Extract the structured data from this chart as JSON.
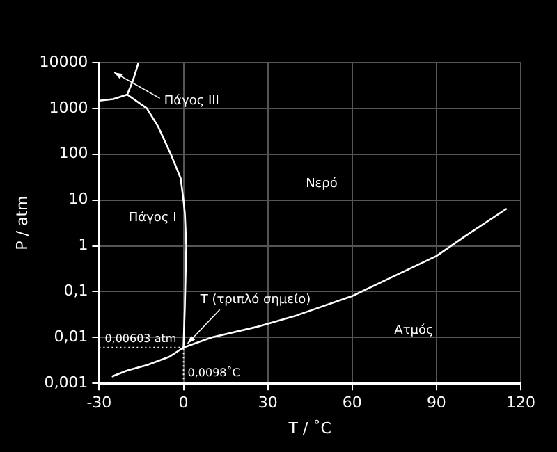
{
  "chart_data": {
    "type": "line",
    "xlabel": "T / ˚C",
    "ylabel": "P / atm",
    "log": "y",
    "grid": true,
    "marker": "none",
    "line_style": "solid",
    "legend": false,
    "xlim": [
      -30,
      120
    ],
    "xticks": [
      -30,
      0,
      30,
      60,
      90,
      120
    ],
    "ylim": [
      0.001,
      10000
    ],
    "yticks": [
      {
        "value": 0.001,
        "label": "0,001"
      },
      {
        "value": 0.01,
        "label": "0,01"
      },
      {
        "value": 0.1,
        "label": "0,1"
      },
      1,
      10,
      100,
      1000,
      10000
    ],
    "series": [
      {
        "color": "#ffffff",
        "x": [
          -25.5,
          -20,
          -13,
          -5,
          0.0098,
          10,
          26,
          40,
          60,
          75,
          90,
          100,
          115
        ],
        "values": [
          0.0014,
          0.0019,
          0.0025,
          0.0038,
          0.00603,
          0.01,
          0.017,
          0.03,
          0.08,
          0.22,
          0.6,
          1.6,
          6.5
        ]
      },
      {
        "color": "#ffffff",
        "x": [
          0.0098,
          0.5,
          1,
          0.5,
          0,
          -1,
          -4.5,
          -9,
          -13,
          -20
        ],
        "values": [
          0.00603,
          0.05,
          1,
          5,
          10,
          30,
          100,
          400,
          1000,
          2000
        ]
      },
      {
        "color": "#ffffff",
        "x": [
          -30,
          -25,
          -20,
          -18,
          -16
        ],
        "values": [
          1480,
          1600,
          2000,
          4000,
          10000
        ]
      }
    ],
    "ref_lines": [
      {
        "axis": "y",
        "value": 0.00603,
        "label": "0,00603 atm",
        "line_style": "dotted",
        "color": "#ffffff"
      },
      {
        "axis": "x",
        "value": 0.0098,
        "label": "0,0098˚C",
        "line_style": "dotted",
        "color": "#ffffff"
      }
    ],
    "annotations": [
      "Πάγος III",
      "Πάγος I",
      "Νερό",
      "Ατμός",
      {
        "text": "T (τριπλό σημείο)",
        "x": 0.0098,
        "y": 0.00603
      }
    ]
  }
}
